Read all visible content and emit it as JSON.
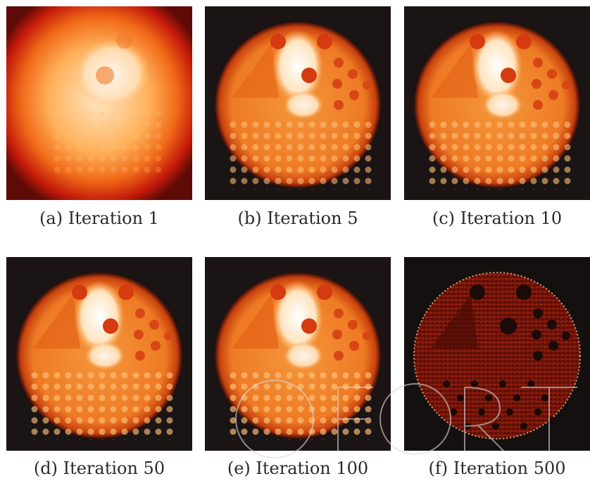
{
  "panels": [
    {
      "caption": "(a)  Iteration 1"
    },
    {
      "caption": "(b)  Iteration 5"
    },
    {
      "caption": "(c)  Iteration 10"
    },
    {
      "caption": "(d)  Iteration 50"
    },
    {
      "caption": "(e)  Iteration 100"
    },
    {
      "caption": "(f)  Iteration 500"
    }
  ],
  "colors": {
    "background": "#1a1414",
    "phantom_base": "#f07a2a",
    "hot_region": "#fff6ea",
    "cold_spot": "#d53a10",
    "noise_red": "#8a1a10"
  }
}
